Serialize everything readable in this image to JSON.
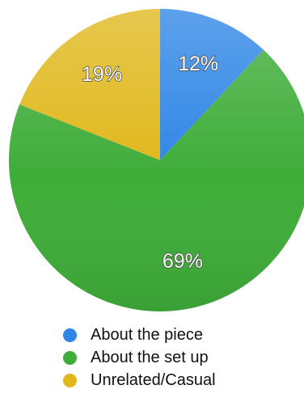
{
  "chart_data": {
    "type": "pie",
    "categories": [
      "About the piece",
      "About the set up",
      "Unrelated/Casual"
    ],
    "values": [
      12,
      69,
      19
    ],
    "value_labels": [
      "12%",
      "69%",
      "19%"
    ],
    "colors": [
      "#2f86e6",
      "#3fad39",
      "#e0b81c"
    ],
    "start_angle_deg": 0,
    "direction": "clockwise",
    "title": "",
    "legend_position": "bottom"
  }
}
